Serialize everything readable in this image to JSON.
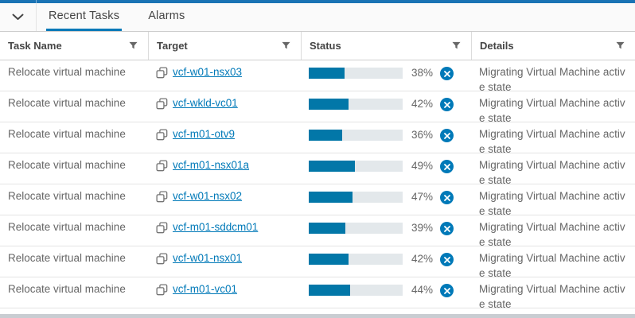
{
  "colors": {
    "accent": "#0079b8",
    "progress_fill": "#0277a8",
    "progress_track": "#e3e8eb",
    "top_strip": "#1a73b4"
  },
  "panel": {
    "tabs": [
      {
        "label": "Recent Tasks",
        "active": true
      },
      {
        "label": "Alarms",
        "active": false
      }
    ]
  },
  "table": {
    "columns": [
      {
        "label": "Task Name"
      },
      {
        "label": "Target"
      },
      {
        "label": "Status"
      },
      {
        "label": "Details"
      }
    ],
    "rows": [
      {
        "task": "Relocate virtual machine",
        "target": "vcf-w01-nsx03",
        "percent": 38,
        "percent_label": "38%",
        "details": "Migrating Virtual Machine active state"
      },
      {
        "task": "Relocate virtual machine",
        "target": "vcf-wkld-vc01",
        "percent": 42,
        "percent_label": "42%",
        "details": "Migrating Virtual Machine active state"
      },
      {
        "task": "Relocate virtual machine",
        "target": "vcf-m01-otv9",
        "percent": 36,
        "percent_label": "36%",
        "details": "Migrating Virtual Machine active state"
      },
      {
        "task": "Relocate virtual machine",
        "target": "vcf-m01-nsx01a",
        "percent": 49,
        "percent_label": "49%",
        "details": "Migrating Virtual Machine active state"
      },
      {
        "task": "Relocate virtual machine",
        "target": "vcf-w01-nsx02",
        "percent": 47,
        "percent_label": "47%",
        "details": "Migrating Virtual Machine active state"
      },
      {
        "task": "Relocate virtual machine",
        "target": "vcf-m01-sddcm01",
        "percent": 39,
        "percent_label": "39%",
        "details": "Migrating Virtual Machine active state"
      },
      {
        "task": "Relocate virtual machine",
        "target": "vcf-w01-nsx01",
        "percent": 42,
        "percent_label": "42%",
        "details": "Migrating Virtual Machine active state"
      },
      {
        "task": "Relocate virtual machine",
        "target": "vcf-m01-vc01",
        "percent": 44,
        "percent_label": "44%",
        "details": "Migrating Virtual Machine active state"
      }
    ]
  }
}
